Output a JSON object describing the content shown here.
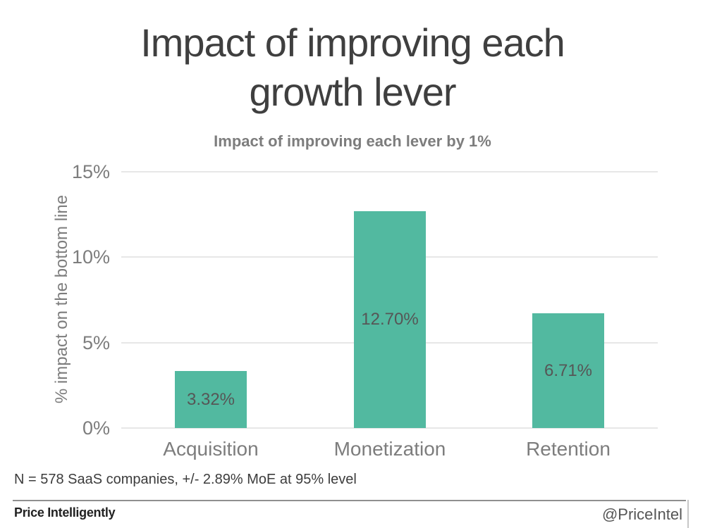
{
  "page": {
    "title": "Impact of improving each growth lever",
    "footnote": "N = 578 SaaS companies, +/- 2.89% MoE at 95% level",
    "brand": "Price Intelligently",
    "handle": "@PriceIntel"
  },
  "chart_data": {
    "type": "bar",
    "title": "Impact of improving each lever by 1%",
    "categories": [
      "Acquisition",
      "Monetization",
      "Retention"
    ],
    "values": [
      3.32,
      12.7,
      6.71
    ],
    "value_labels": [
      "3.32%",
      "12.70%",
      "6.71%"
    ],
    "xlabel": "",
    "ylabel": "% impact on the bottom line",
    "ylim": [
      0,
      15
    ],
    "yticks": [
      0,
      5,
      10,
      15
    ],
    "ytick_labels": [
      "0%",
      "5%",
      "10%",
      "15%"
    ],
    "grid": true,
    "legend": false,
    "bar_color": "#52B9A0",
    "value_label_color": "#565656",
    "axis_text_color": "#7d7d7d",
    "title_color": "#3f3f3f"
  }
}
